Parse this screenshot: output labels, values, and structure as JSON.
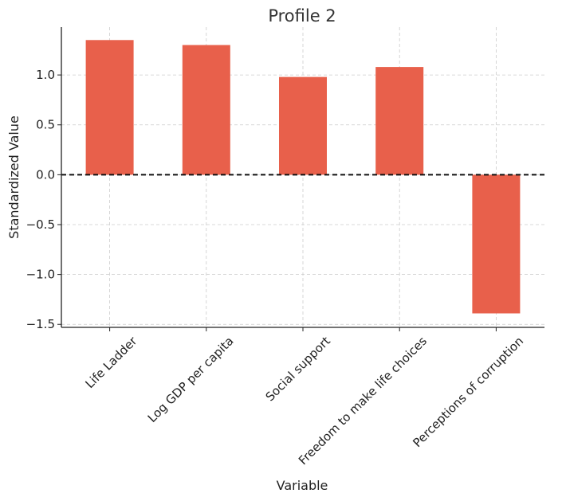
{
  "chart_data": {
    "type": "bar",
    "title": "Profile 2",
    "xlabel": "Variable",
    "ylabel": "Standardized Value",
    "categories": [
      "Life Ladder",
      "Log GDP per capita",
      "Social support",
      "Freedom to make life choices",
      "Perceptions of corruption"
    ],
    "values": [
      1.35,
      1.3,
      0.98,
      1.08,
      -1.39
    ],
    "ylim": [
      -1.53,
      1.48
    ],
    "yticks": [
      -1.5,
      -1.0,
      -0.5,
      0.0,
      0.5,
      1.0
    ],
    "ytick_labels": [
      "−1.5",
      "−1.0",
      "−0.5",
      "0.0",
      "0.5",
      "1.0"
    ],
    "bar_color": "#e8604b",
    "reference_line": 0,
    "grid": true,
    "legend": "none"
  }
}
